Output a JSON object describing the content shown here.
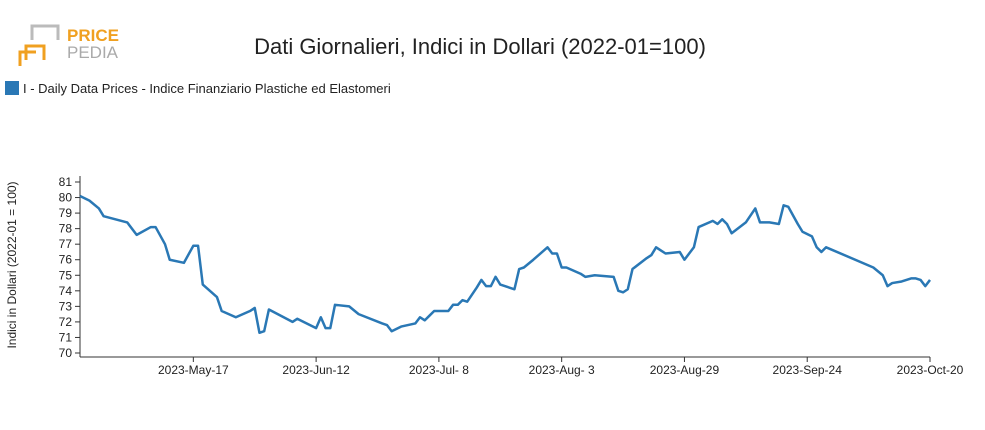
{
  "logo": {
    "line1": "PRICE",
    "line2": "PEDIA"
  },
  "chart_data": {
    "type": "line",
    "title": "Dati Giornalieri, Indici in Dollari (2022-01=100)",
    "y_label": "Indici in Dollari (2022-01 = 100)",
    "x": [
      "2023-04-23",
      "2023-04-25",
      "2023-04-27",
      "2023-04-28",
      "2023-05-03",
      "2023-05-05",
      "2023-05-08",
      "2023-05-09",
      "2023-05-11",
      "2023-05-12",
      "2023-05-15",
      "2023-05-17",
      "2023-05-18",
      "2023-05-19",
      "2023-05-22",
      "2023-05-23",
      "2023-05-26",
      "2023-05-29",
      "2023-05-30",
      "2023-05-31",
      "2023-06-01",
      "2023-06-02",
      "2023-06-07",
      "2023-06-08",
      "2023-06-12",
      "2023-06-13",
      "2023-06-14",
      "2023-06-15",
      "2023-06-16",
      "2023-06-19",
      "2023-06-21",
      "2023-06-26",
      "2023-06-27",
      "2023-06-28",
      "2023-06-30",
      "2023-07-03",
      "2023-07-04",
      "2023-07-05",
      "2023-07-06",
      "2023-07-07",
      "2023-07-10",
      "2023-07-11",
      "2023-07-12",
      "2023-07-13",
      "2023-07-14",
      "2023-07-16",
      "2023-07-17",
      "2023-07-18",
      "2023-07-19",
      "2023-07-20",
      "2023-07-21",
      "2023-07-24",
      "2023-07-25",
      "2023-07-26",
      "2023-07-28",
      "2023-07-31",
      "2023-08-01",
      "2023-08-02",
      "2023-08-03",
      "2023-08-04",
      "2023-08-07",
      "2023-08-08",
      "2023-08-10",
      "2023-08-14",
      "2023-08-15",
      "2023-08-16",
      "2023-08-17",
      "2023-08-18",
      "2023-08-21",
      "2023-08-22",
      "2023-08-23",
      "2023-08-24",
      "2023-08-25",
      "2023-08-28",
      "2023-08-29",
      "2023-08-31",
      "2023-09-01",
      "2023-09-04",
      "2023-09-05",
      "2023-09-06",
      "2023-09-07",
      "2023-09-08",
      "2023-09-11",
      "2023-09-13",
      "2023-09-14",
      "2023-09-16",
      "2023-09-18",
      "2023-09-19",
      "2023-09-20",
      "2023-09-22",
      "2023-09-23",
      "2023-09-25",
      "2023-09-26",
      "2023-09-27",
      "2023-09-28",
      "2023-10-08",
      "2023-10-10",
      "2023-10-11",
      "2023-10-12",
      "2023-10-14",
      "2023-10-16",
      "2023-10-17",
      "2023-10-18",
      "2023-10-19",
      "2023-10-20"
    ],
    "series": [
      {
        "name": "I - Daily Data Prices - Indice Finanziario Plastiche ed Elastomeri",
        "color": "#2a78b5",
        "values": [
          80.1,
          79.8,
          79.3,
          78.8,
          78.4,
          77.6,
          78.1,
          78.1,
          77.0,
          76.0,
          75.8,
          76.9,
          76.9,
          74.4,
          73.6,
          72.7,
          72.3,
          72.7,
          72.9,
          71.3,
          71.4,
          72.8,
          72.0,
          72.2,
          71.6,
          72.3,
          71.6,
          71.6,
          73.1,
          73.0,
          72.5,
          71.9,
          71.8,
          71.4,
          71.7,
          71.9,
          72.3,
          72.1,
          72.4,
          72.7,
          72.7,
          73.1,
          73.1,
          73.4,
          73.3,
          74.2,
          74.7,
          74.3,
          74.3,
          74.9,
          74.4,
          74.1,
          75.4,
          75.5,
          76.0,
          76.8,
          76.4,
          76.4,
          75.5,
          75.5,
          75.1,
          74.9,
          75.0,
          74.9,
          74.0,
          73.9,
          74.1,
          75.4,
          76.1,
          76.3,
          76.8,
          76.6,
          76.4,
          76.5,
          76.0,
          76.8,
          78.1,
          78.5,
          78.3,
          78.6,
          78.3,
          77.7,
          78.4,
          79.3,
          78.4,
          78.4,
          78.3,
          79.5,
          79.4,
          78.3,
          77.8,
          77.5,
          76.8,
          76.5,
          76.8,
          75.5,
          75.0,
          74.3,
          74.5,
          74.6,
          74.8,
          74.8,
          74.7,
          74.3,
          74.7
        ]
      }
    ],
    "xlim": [
      "2023-04-23",
      "2023-10-20"
    ],
    "xticks": [
      {
        "value": "2023-05-17",
        "label": "2023-May-17"
      },
      {
        "value": "2023-06-12",
        "label": "2023-Jun-12"
      },
      {
        "value": "2023-07-08",
        "label": "2023-Jul- 8"
      },
      {
        "value": "2023-08-03",
        "label": "2023-Aug- 3"
      },
      {
        "value": "2023-08-29",
        "label": "2023-Aug-29"
      },
      {
        "value": "2023-09-24",
        "label": "2023-Sep-24"
      },
      {
        "value": "2023-10-20",
        "label": "2023-Oct-20"
      }
    ],
    "ylim": [
      70,
      81
    ],
    "yticks": [
      70,
      71,
      72,
      73,
      74,
      75,
      76,
      77,
      78,
      79,
      80,
      81
    ],
    "grid": false,
    "legend": "top-left"
  }
}
